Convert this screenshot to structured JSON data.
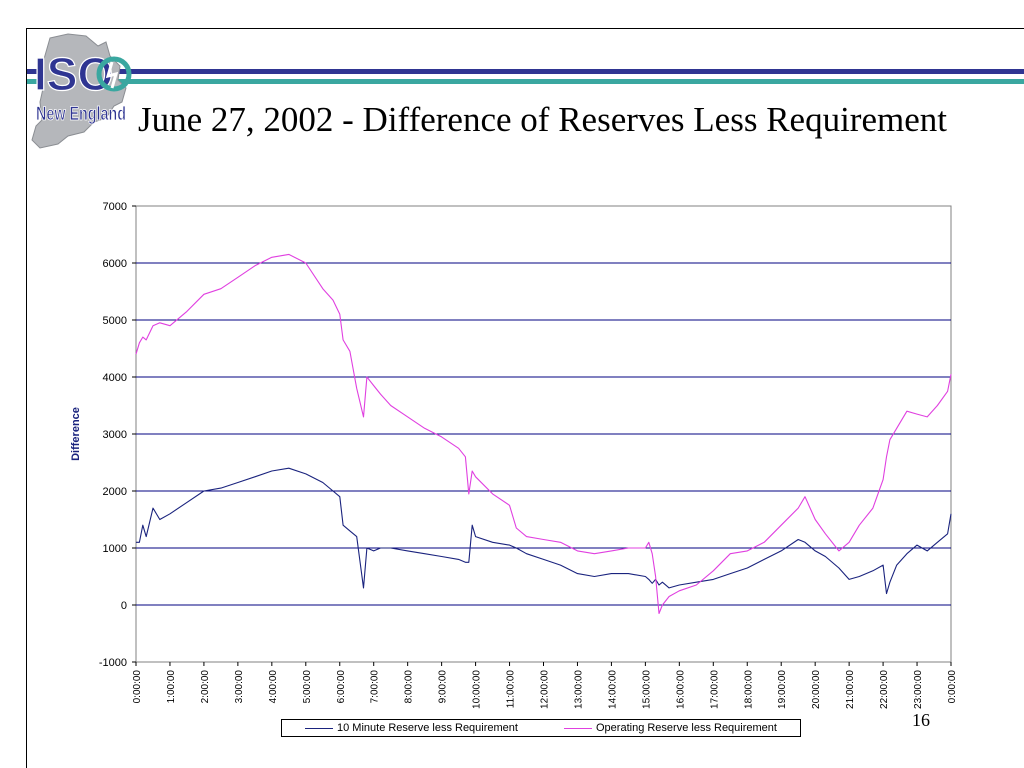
{
  "slide": {
    "title": "June 27, 2002 - Difference of Reserves Less Requirement",
    "page_number": "16"
  },
  "logo": {
    "name": "ISO New England",
    "colors": {
      "navy": "#2f3592",
      "teal": "#3aa7a0",
      "gray": "#b5b7bb"
    }
  },
  "chart_data": {
    "type": "line",
    "ylabel": "Difference",
    "xlabel": "",
    "ylim": [
      -1000,
      7000
    ],
    "yticks": [
      "-1000",
      "0",
      "1000",
      "2000",
      "3000",
      "4000",
      "5000",
      "6000",
      "7000"
    ],
    "grid": true,
    "legend_position": "bottom",
    "x_categories": [
      "0:00:00",
      "1:00:00",
      "2:00:00",
      "3:00:00",
      "4:00:00",
      "5:00:00",
      "6:00:00",
      "7:00:00",
      "8:00:00",
      "9:00:00",
      "10:00:00",
      "11:00:00",
      "12:00:00",
      "13:00:00",
      "14:00:00",
      "15:00:00",
      "16:00:00",
      "17:00:00",
      "18:00:00",
      "19:00:00",
      "20:00:00",
      "21:00:00",
      "22:00:00",
      "23:00:00",
      "0:00:00"
    ],
    "x_hours": [
      0,
      0.1,
      0.2,
      0.3,
      0.5,
      0.7,
      1,
      1.5,
      2,
      2.5,
      3,
      3.5,
      4,
      4.5,
      5,
      5.5,
      5.8,
      6,
      6.1,
      6.3,
      6.5,
      6.7,
      6.8,
      7,
      7.2,
      7.5,
      8,
      8.5,
      9,
      9.5,
      9.7,
      9.8,
      9.9,
      10,
      10.5,
      11,
      11.2,
      11.5,
      12,
      12.5,
      13,
      13.5,
      14,
      14.5,
      15,
      15.1,
      15.2,
      15.3,
      15.4,
      15.5,
      15.7,
      16,
      16.5,
      17,
      17.5,
      18,
      18.5,
      19,
      19.5,
      19.7,
      20,
      20.3,
      20.7,
      21,
      21.3,
      21.7,
      22,
      22.1,
      22.2,
      22.4,
      22.7,
      23,
      23.3,
      23.6,
      23.9,
      24
    ],
    "series": [
      {
        "name": "10 Minute Reserve less Requirement",
        "color": "#1a237e",
        "values": [
          1100,
          1100,
          1400,
          1200,
          1700,
          1500,
          1600,
          1800,
          2000,
          2050,
          2150,
          2250,
          2350,
          2400,
          2300,
          2150,
          2000,
          1900,
          1400,
          1300,
          1200,
          300,
          1000,
          950,
          1000,
          1000,
          950,
          900,
          850,
          800,
          750,
          750,
          1400,
          1200,
          1100,
          1050,
          1000,
          900,
          800,
          700,
          550,
          500,
          550,
          550,
          500,
          450,
          380,
          450,
          350,
          400,
          300,
          350,
          400,
          450,
          550,
          650,
          800,
          950,
          1150,
          1100,
          950,
          850,
          650,
          450,
          500,
          600,
          700,
          200,
          400,
          700,
          900,
          1050,
          950,
          1100,
          1250,
          1600
        ]
      },
      {
        "name": "Operating Reserve less Requirement",
        "color": "#e040e0",
        "values": [
          4400,
          4600,
          4700,
          4650,
          4900,
          4950,
          4900,
          5150,
          5450,
          5550,
          5750,
          5950,
          6100,
          6150,
          6000,
          5550,
          5350,
          5100,
          4650,
          4450,
          3800,
          3300,
          4000,
          3850,
          3700,
          3500,
          3300,
          3100,
          2950,
          2750,
          2600,
          1950,
          2350,
          2250,
          1950,
          1750,
          1350,
          1200,
          1150,
          1100,
          950,
          900,
          950,
          1000,
          1000,
          1100,
          900,
          500,
          -150,
          0,
          150,
          250,
          350,
          600,
          900,
          950,
          1100,
          1400,
          1700,
          1900,
          1500,
          1250,
          950,
          1100,
          1400,
          1700,
          2200,
          2600,
          2900,
          3100,
          3400,
          3350,
          3300,
          3500,
          3750,
          4050
        ]
      }
    ]
  }
}
